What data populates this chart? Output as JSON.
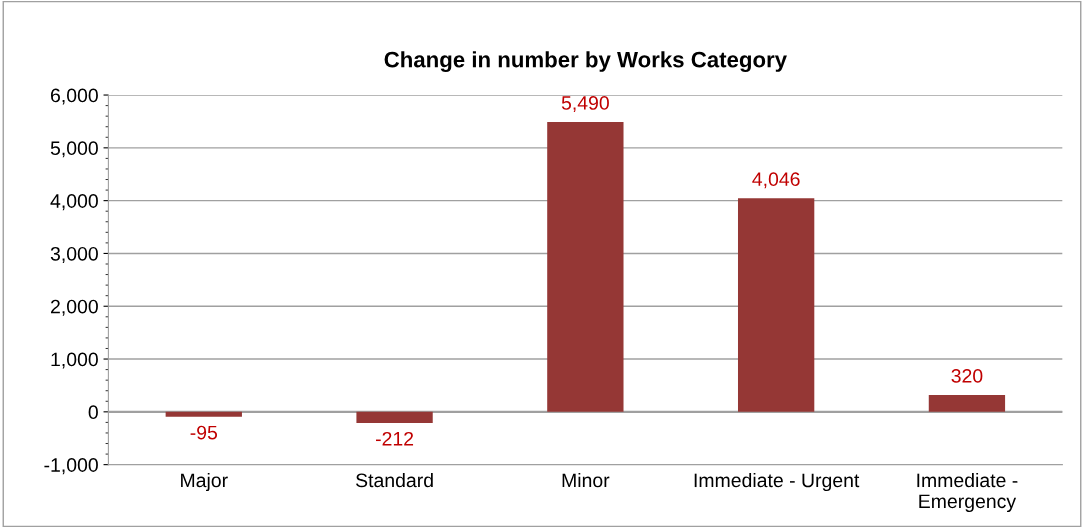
{
  "chart_data": {
    "type": "bar",
    "title": "Change in number by Works Category",
    "categories": [
      "Major",
      "Standard",
      "Minor",
      "Immediate - Urgent",
      "Immediate -\nEmergency"
    ],
    "values": [
      -95,
      -212,
      5490,
      4046,
      320
    ],
    "value_labels": [
      "-95",
      "-212",
      "5,490",
      "4,046",
      "320"
    ],
    "color": "#953735",
    "ylim": [
      -1000,
      6000
    ],
    "yticks": [
      {
        "value": -1000,
        "label": "-1,000"
      },
      0,
      {
        "value": 1000,
        "label": "1,000"
      },
      {
        "value": 2000,
        "label": "2,000"
      },
      {
        "value": 3000,
        "label": "3,000"
      },
      {
        "value": 4000,
        "label": "4,000"
      },
      {
        "value": 5000,
        "label": "5,000"
      },
      {
        "value": 6000,
        "label": "6,000"
      }
    ],
    "grid": "y"
  }
}
